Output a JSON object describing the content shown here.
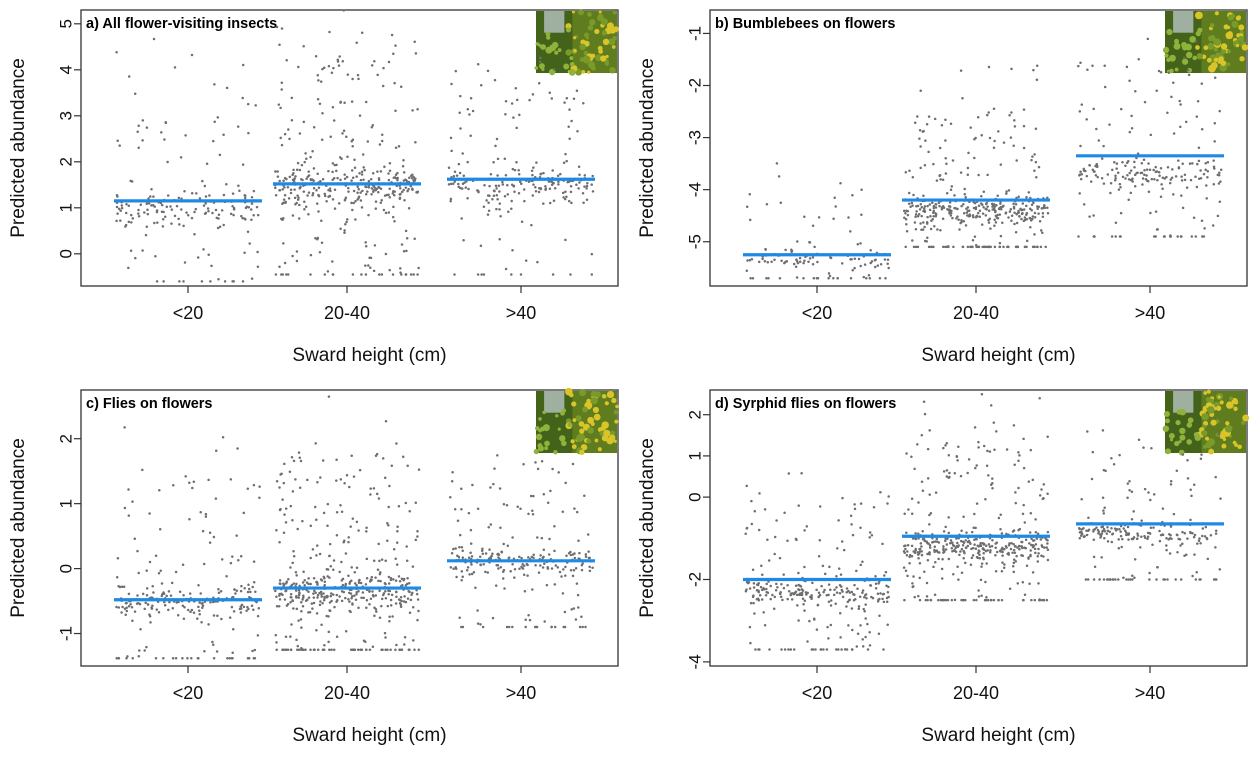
{
  "colors": {
    "points": "#6e6e6e",
    "mean_line": "#1f8ae6",
    "frame": "#333333",
    "photo_leaf": "#7a9a2a",
    "photo_flower": "#d9c52a"
  },
  "photo_icon": "flower-meadow-photo",
  "chart_data": [
    {
      "type": "scatter",
      "title": "a) All flower-visiting insects",
      "xlabel": "Sward height (cm)",
      "ylabel": "Predicted abundance",
      "categories": [
        "<20",
        "20-40",
        ">40"
      ],
      "yticks": [
        0,
        1,
        2,
        3,
        4,
        5
      ],
      "ylim": [
        -0.7,
        5.3
      ],
      "means": [
        1.15,
        1.52,
        1.62
      ],
      "spread": {
        "lo": [
          -0.6,
          -0.45,
          -0.45
        ],
        "hi": [
          4.7,
          5.3,
          4.4
        ],
        "core": [
          1.0,
          1.45,
          1.5
        ]
      },
      "n_points": [
        200,
        420,
        230
      ]
    },
    {
      "type": "scatter",
      "title": "b) Bumblebees on flowers",
      "xlabel": "Sward height (cm)",
      "ylabel": "Predicted abundance",
      "categories": [
        "<20",
        "20-40",
        ">40"
      ],
      "yticks": [
        -5,
        -4,
        -3,
        -2,
        -1
      ],
      "ylim": [
        -5.85,
        -0.55
      ],
      "means": [
        -5.25,
        -4.2,
        -3.35
      ],
      "spread": {
        "lo": [
          -5.7,
          -5.1,
          -4.9
        ],
        "hi": [
          -3.4,
          -1.5,
          -0.8
        ],
        "core": [
          -5.35,
          -4.4,
          -3.7
        ]
      },
      "n_points": [
        120,
        420,
        230
      ]
    },
    {
      "type": "scatter",
      "title": "c) Flies on flowers",
      "xlabel": "Sward height (cm)",
      "ylabel": "Predicted abundance",
      "categories": [
        "<20",
        "20-40",
        ">40"
      ],
      "yticks": [
        -1,
        0,
        1,
        2
      ],
      "ylim": [
        -1.5,
        2.75
      ],
      "means": [
        -0.48,
        -0.3,
        0.12
      ],
      "spread": {
        "lo": [
          -1.38,
          -1.25,
          -0.9
        ],
        "hi": [
          2.2,
          2.65,
          2.1
        ],
        "core": [
          -0.5,
          -0.35,
          0.1
        ]
      },
      "n_points": [
        260,
        480,
        260
      ]
    },
    {
      "type": "scatter",
      "title": "d) Syrphid flies on flowers",
      "xlabel": "Sward height (cm)",
      "ylabel": "Predicted abundance",
      "categories": [
        "<20",
        "20-40",
        ">40"
      ],
      "yticks": [
        -4,
        -2,
        0,
        1,
        2
      ],
      "ytick_labels": [
        "-4",
        "-2",
        "0",
        "1",
        "2"
      ],
      "ylim": [
        -4.1,
        2.6
      ],
      "means": [
        -2.0,
        -0.95,
        -0.65
      ],
      "spread": {
        "lo": [
          -3.7,
          -2.5,
          -2.0
        ],
        "hi": [
          0.8,
          2.5,
          1.8
        ],
        "core": [
          -2.3,
          -1.2,
          -0.85
        ]
      },
      "n_points": [
        300,
        460,
        240
      ]
    }
  ]
}
